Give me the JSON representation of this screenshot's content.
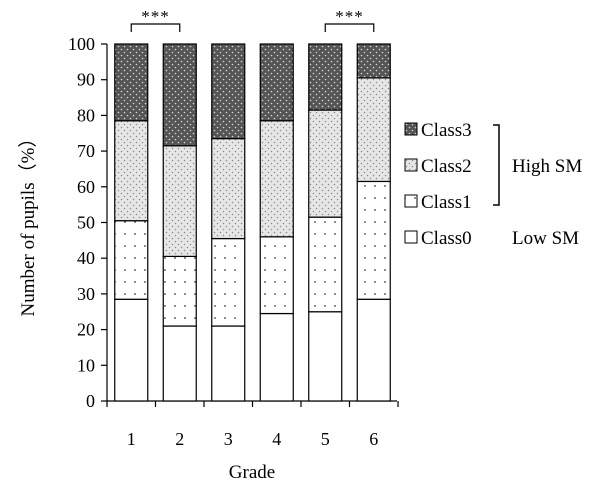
{
  "chart_data": {
    "type": "bar",
    "stacked": true,
    "categories": [
      "1",
      "2",
      "3",
      "4",
      "5",
      "6"
    ],
    "series": [
      {
        "name": "Class0",
        "values": [
          28.5,
          21.0,
          21.0,
          24.5,
          25.0,
          28.5
        ],
        "pattern": "white"
      },
      {
        "name": "Class1",
        "values": [
          22.0,
          19.5,
          24.5,
          21.5,
          26.5,
          33.0
        ],
        "pattern": "sparse-dots"
      },
      {
        "name": "Class2",
        "values": [
          28.0,
          31.0,
          28.0,
          32.5,
          30.0,
          29.0
        ],
        "pattern": "dense-dots-light"
      },
      {
        "name": "Class3",
        "values": [
          21.5,
          28.5,
          26.5,
          21.5,
          18.5,
          9.5
        ],
        "pattern": "dots-dark"
      }
    ],
    "xlabel": "Grade",
    "ylabel": "Number of pupils（%）",
    "ylim": [
      0,
      100
    ],
    "yticks": [
      0,
      10,
      20,
      30,
      40,
      50,
      60,
      70,
      80,
      90,
      100
    ],
    "grid": false,
    "legend_placement": "right",
    "legend_order": [
      "Class3",
      "Class2",
      "Class1",
      "Class0"
    ],
    "group_labels": {
      "high": "High SM",
      "low": "Low SM"
    },
    "annotations": [
      {
        "text": "***",
        "between": [
          "1",
          "2"
        ]
      },
      {
        "text": "***",
        "between": [
          "5",
          "6"
        ]
      }
    ]
  }
}
